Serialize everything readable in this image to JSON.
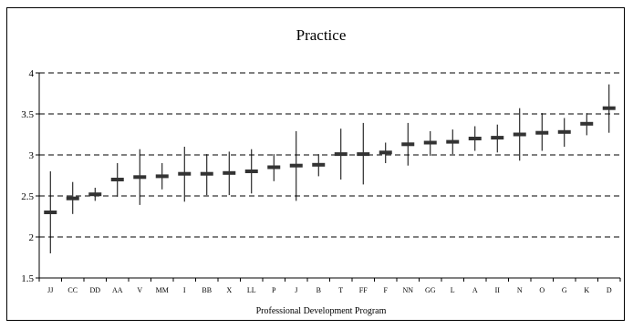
{
  "chart_data": {
    "type": "errorbar",
    "title": "Practice",
    "xlabel": "Professional Development Program",
    "ylabel": "",
    "ylim": [
      1.5,
      4
    ],
    "yticks": [
      "1.5",
      "2",
      "2.5",
      "3",
      "3.5",
      "4"
    ],
    "grid": true,
    "categories": [
      "JJ",
      "CC",
      "DD",
      "AA",
      "V",
      "MM",
      "I",
      "BB",
      "X",
      "LL",
      "P",
      "J",
      "B",
      "T",
      "FF",
      "F",
      "NN",
      "GG",
      "L",
      "A",
      "II",
      "N",
      "O",
      "G",
      "K",
      "D"
    ],
    "series": [
      {
        "mean": [
          2.3,
          2.47,
          2.52,
          2.7,
          2.73,
          2.74,
          2.77,
          2.77,
          2.78,
          2.8,
          2.85,
          2.87,
          2.88,
          3.01,
          3.01,
          3.03,
          3.13,
          3.15,
          3.16,
          3.2,
          3.21,
          3.25,
          3.27,
          3.28,
          3.38,
          3.57
        ],
        "upper": [
          2.8,
          2.67,
          2.6,
          2.9,
          3.07,
          2.9,
          3.1,
          3.01,
          3.04,
          3.07,
          3.01,
          3.29,
          3.01,
          3.32,
          3.39,
          3.15,
          3.39,
          3.29,
          3.31,
          3.35,
          3.37,
          3.57,
          3.51,
          3.45,
          3.51,
          3.86
        ],
        "lower": [
          1.8,
          2.28,
          2.44,
          2.49,
          2.39,
          2.58,
          2.43,
          2.51,
          2.51,
          2.53,
          2.68,
          2.44,
          2.74,
          2.7,
          2.64,
          2.9,
          2.87,
          2.99,
          3.01,
          3.05,
          3.03,
          2.93,
          3.05,
          3.1,
          3.24,
          3.27
        ]
      }
    ]
  }
}
